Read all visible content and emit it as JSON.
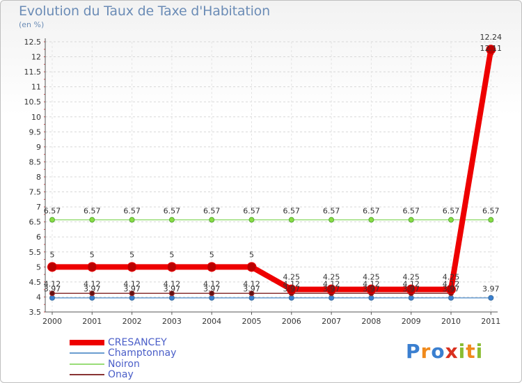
{
  "chart_data": {
    "type": "line",
    "title": "Evolution du Taux de Taxe d'Habitation",
    "subtitle": "(en %)",
    "xlabel": "",
    "ylabel": "",
    "x": [
      "2000",
      "2001",
      "2002",
      "2003",
      "2004",
      "2005",
      "2006",
      "2007",
      "2008",
      "2009",
      "2010",
      "2011"
    ],
    "ylim": [
      3.5,
      12.5
    ],
    "yticks": [
      "3.5",
      "4",
      "4.5",
      "5",
      "5.5",
      "6",
      "6.5",
      "7",
      "7.5",
      "8",
      "8.5",
      "9",
      "9.5",
      "10",
      "10.5",
      "11",
      "11.5",
      "12",
      "12.5"
    ],
    "series": [
      {
        "name": "CRESANCEY",
        "color": "#ee0000",
        "values": [
          5,
          5,
          5,
          5,
          5,
          5,
          4.25,
          4.25,
          4.25,
          4.25,
          4.25,
          12.24
        ],
        "labels": [
          "5",
          "5",
          "5",
          "5",
          "5",
          "5",
          "4.25",
          "4.25",
          "4.25",
          "4.25",
          "4.25",
          "12.24"
        ]
      },
      {
        "name": "Champtonnay",
        "color": "#6a9dd0",
        "values": [
          3.97,
          3.97,
          3.97,
          3.97,
          3.97,
          3.97,
          3.97,
          3.97,
          3.97,
          3.97,
          3.97,
          3.97
        ],
        "labels": [
          "3.97",
          "3.97",
          "3.97",
          "3.97",
          "3.97",
          "3.97",
          "3.97",
          "3.97",
          "3.97",
          "3.97",
          "3.97",
          "3.97"
        ]
      },
      {
        "name": "Noiron",
        "color": "#99dd77",
        "values": [
          6.57,
          6.57,
          6.57,
          6.57,
          6.57,
          6.57,
          6.57,
          6.57,
          6.57,
          6.57,
          6.57,
          6.57
        ],
        "labels": [
          "6.57",
          "6.57",
          "6.57",
          "6.57",
          "6.57",
          "6.57",
          "6.57",
          "6.57",
          "6.57",
          "6.57",
          "6.57",
          "6.57"
        ]
      },
      {
        "name": "Onay",
        "color": "#883333",
        "values": [
          4.12,
          4.12,
          4.12,
          4.12,
          4.12,
          4.12,
          4.12,
          4.12,
          4.12,
          4.12,
          4.12,
          12.11
        ],
        "labels": [
          "4.12",
          "4.12",
          "4.12",
          "4.12",
          "4.12",
          "4.12",
          "4.12",
          "4.12",
          "4.12",
          "4.12",
          "4.12",
          "12.11"
        ]
      }
    ],
    "legend": "bottom-left"
  },
  "logo": {
    "text": "Proxiti",
    "letters": [
      "P",
      "r",
      "o",
      "x",
      "i",
      "t",
      "i"
    ],
    "colors": [
      "#3a7fd0",
      "#f08a1c",
      "#3a7fd0",
      "#d9301f",
      "#8abd32",
      "#f08a1c",
      "#8abd32"
    ]
  }
}
